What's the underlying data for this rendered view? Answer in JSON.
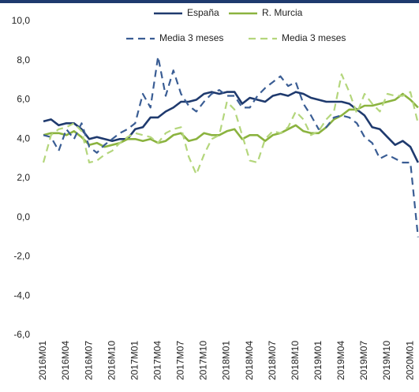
{
  "chart_data": {
    "type": "line",
    "categories": [
      "2016M01",
      null,
      null,
      "2016M04",
      null,
      null,
      "2016M07",
      null,
      null,
      "2016M10",
      null,
      null,
      "2017M01",
      null,
      null,
      "2017M04",
      null,
      null,
      "2017M07",
      null,
      null,
      "2017M10",
      null,
      null,
      "2018M01",
      null,
      null,
      "2018M04",
      null,
      null,
      "2018M07",
      null,
      null,
      "2018M10",
      null,
      null,
      "2019M01",
      null,
      null,
      "2019M04",
      null,
      null,
      "2019M07",
      null,
      null,
      "2019M10",
      null,
      null,
      "2020M01",
      null
    ],
    "series": [
      {
        "name": "España",
        "color": "#1f3a6e",
        "dashed": false,
        "values": [
          4.9,
          5.0,
          4.7,
          4.8,
          4.8,
          4.5,
          4.0,
          4.1,
          4.0,
          3.9,
          4.0,
          4.0,
          4.5,
          4.6,
          5.1,
          5.1,
          5.4,
          5.6,
          5.9,
          5.9,
          6.0,
          6.3,
          6.4,
          6.3,
          6.4,
          6.4,
          5.8,
          6.1,
          6.0,
          5.9,
          6.2,
          6.3,
          6.2,
          6.4,
          6.3,
          6.1,
          6.0,
          5.9,
          5.9,
          5.9,
          5.8,
          5.5,
          5.2,
          4.6,
          4.5,
          4.1,
          3.7,
          3.9,
          3.6,
          2.8
        ]
      },
      {
        "name": "R. Murcia",
        "color": "#8bb33f",
        "dashed": false,
        "values": [
          4.2,
          4.3,
          4.3,
          4.2,
          4.4,
          4.1,
          3.7,
          3.8,
          3.6,
          3.7,
          3.8,
          4.0,
          4.0,
          3.9,
          4.0,
          3.8,
          3.9,
          4.2,
          4.3,
          3.9,
          4.0,
          4.3,
          4.2,
          4.2,
          4.4,
          4.5,
          4.0,
          4.2,
          4.2,
          3.9,
          4.2,
          4.3,
          4.5,
          4.7,
          4.4,
          4.3,
          4.3,
          4.6,
          5.0,
          5.2,
          5.5,
          5.5,
          5.7,
          5.7,
          5.8,
          5.9,
          6.0,
          6.3,
          6.0,
          5.6
        ]
      },
      {
        "name": "Media 3 meses",
        "color": "#3a5d94",
        "dashed": true,
        "values": [
          4.2,
          4.1,
          3.4,
          4.5,
          4.0,
          4.8,
          3.6,
          3.3,
          3.7,
          4.0,
          4.3,
          4.5,
          4.8,
          6.3,
          5.6,
          8.2,
          6.2,
          7.5,
          6.3,
          5.7,
          5.4,
          5.9,
          6.3,
          6.5,
          6.2,
          6.2,
          5.6,
          5.6,
          6.2,
          6.6,
          6.9,
          7.2,
          6.7,
          6.9,
          5.8,
          5.2,
          4.5,
          4.6,
          5.1,
          5.2,
          5.1,
          4.8,
          4.1,
          3.8,
          3.0,
          3.2,
          3.0,
          2.8,
          2.8,
          -1.0
        ]
      },
      {
        "name": "Media 3 meses",
        "color": "#b4d67c",
        "dashed": true,
        "values": [
          2.8,
          4.2,
          4.5,
          4.6,
          4.8,
          4.4,
          2.8,
          2.9,
          3.2,
          3.4,
          3.8,
          4.1,
          4.3,
          4.2,
          4.1,
          3.8,
          4.3,
          4.5,
          4.6,
          3.1,
          2.2,
          3.2,
          4.0,
          4.2,
          5.9,
          5.5,
          4.2,
          2.9,
          2.8,
          4.0,
          4.4,
          4.3,
          4.6,
          5.4,
          5.0,
          4.2,
          4.4,
          5.0,
          5.4,
          7.3,
          6.4,
          5.3,
          6.3,
          5.8,
          5.4,
          6.3,
          6.2,
          6.2,
          6.4,
          4.8
        ]
      }
    ],
    "ylim": [
      -6,
      10
    ],
    "yticks": [
      {
        "value": -6,
        "label": "-6,0"
      },
      {
        "value": -4,
        "label": "-4,0"
      },
      {
        "value": -2,
        "label": "-2,0"
      },
      {
        "value": 0,
        "label": "0,0"
      },
      {
        "value": 2,
        "label": "2,0"
      },
      {
        "value": 4,
        "label": "4,0"
      },
      {
        "value": 6,
        "label": "6,0"
      },
      {
        "value": 8,
        "label": "8,0"
      },
      {
        "value": 10,
        "label": "10,0"
      }
    ],
    "grid": false,
    "legend": "top"
  }
}
